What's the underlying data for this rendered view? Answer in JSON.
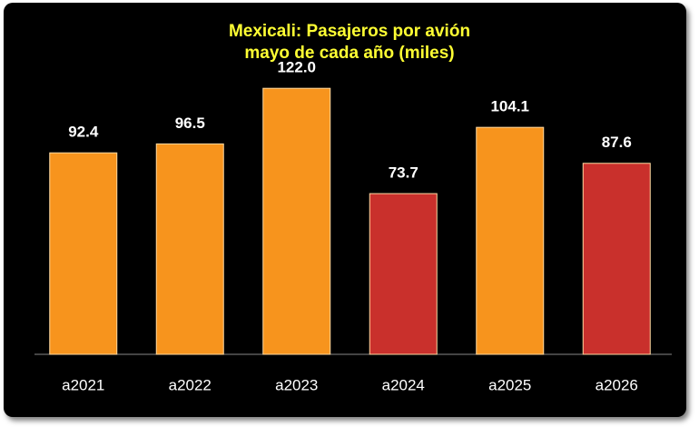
{
  "chart_data": {
    "type": "bar",
    "title": "Mexicali: Pasajeros por avión",
    "subtitle": "mayo de cada año (miles)",
    "categories": [
      "a2021",
      "a2022",
      "a2023",
      "a2024",
      "a2025",
      "a2026"
    ],
    "values": [
      92.4,
      96.5,
      122.0,
      73.7,
      104.1,
      87.6
    ],
    "value_labels": [
      "92.4",
      "96.5",
      "122.0",
      "73.7",
      "104.1",
      "87.6"
    ],
    "colors": [
      "#f7941d",
      "#f7941d",
      "#f7941d",
      "#c9302c",
      "#f7941d",
      "#c9302c"
    ]
  }
}
